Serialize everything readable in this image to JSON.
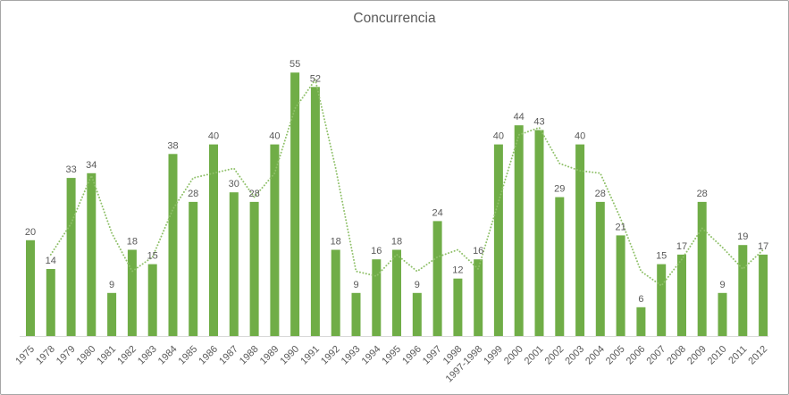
{
  "chart_data": {
    "type": "bar",
    "title": "Concurrencia",
    "categories": [
      "1975",
      "1978",
      "1979",
      "1980",
      "1981",
      "1982",
      "1983",
      "1984",
      "1985",
      "1986",
      "1987",
      "1988",
      "1989",
      "1990",
      "1991",
      "1992",
      "1993",
      "1994",
      "1995",
      "1996",
      "1997",
      "1998",
      "1997-1998",
      "1999",
      "2000",
      "2001",
      "2002",
      "2003",
      "2004",
      "2005",
      "2006",
      "2007",
      "2008",
      "2009",
      "2010",
      "2011",
      "2012"
    ],
    "values": [
      20,
      14,
      33,
      34,
      9,
      18,
      15,
      38,
      28,
      40,
      30,
      28,
      40,
      55,
      52,
      18,
      9,
      16,
      18,
      9,
      24,
      12,
      16,
      40,
      44,
      43,
      29,
      40,
      28,
      21,
      6,
      15,
      17,
      28,
      9,
      19,
      17
    ],
    "data_labels": true,
    "xlabel": "",
    "ylabel": "",
    "ylim": [
      0,
      60
    ],
    "gridlines": false,
    "legend": false,
    "y_axis_visible": false,
    "trendline": {
      "type": "moving_average",
      "period": 2,
      "style": "dotted",
      "color": "#8fc069"
    },
    "colors": {
      "bar": "#70ad47",
      "value_label": "#595959",
      "tick_label": "#595959",
      "title": "#595959",
      "axis_line": "#d9d9d9"
    }
  }
}
